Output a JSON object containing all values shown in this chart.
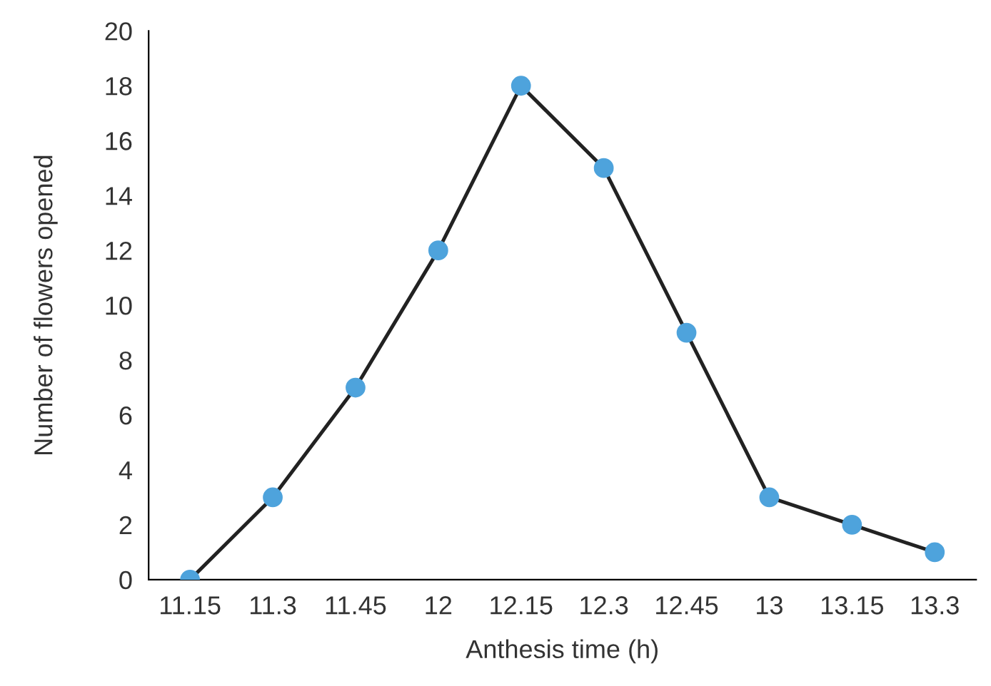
{
  "chart_data": {
    "type": "line",
    "xlabel": "Anthesis time (h)",
    "ylabel": "Number of flowers opened",
    "categories": [
      "11.15",
      "11.3",
      "11.45",
      "12",
      "12.15",
      "12.3",
      "12.45",
      "13",
      "13.15",
      "13.3"
    ],
    "series": [
      {
        "color": "#4ea3dc",
        "values": [
          0,
          3,
          7,
          12,
          18,
          15,
          9,
          3,
          2,
          1
        ]
      }
    ],
    "ylim": [
      0,
      20
    ],
    "yticks": [
      0,
      2,
      4,
      6,
      8,
      10,
      12,
      14,
      16,
      18,
      20
    ],
    "marker": "circle",
    "line_style": "solid",
    "grid": false
  }
}
